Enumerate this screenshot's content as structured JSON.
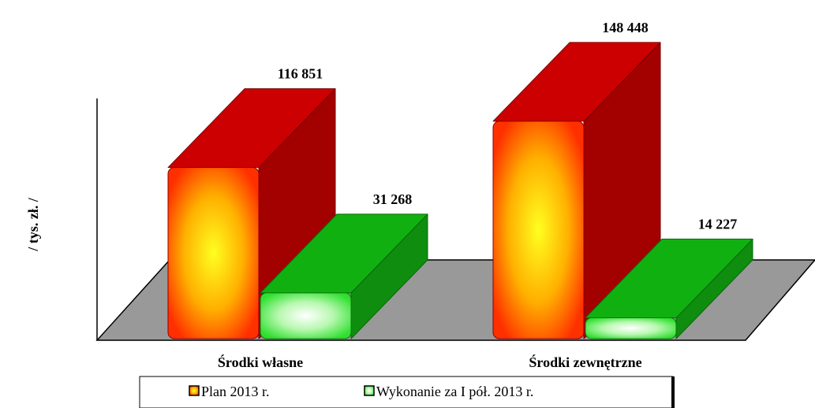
{
  "chart_data": {
    "type": "bar3d",
    "y_label": "/ tys. zł. /",
    "categories": [
      "Środki własne",
      "Środki zewnętrzne"
    ],
    "series": [
      {
        "name": "Plan 2013 r.",
        "color": "#cc0000",
        "values": [
          116851,
          148448
        ],
        "value_labels": [
          "116 851",
          "148 448"
        ]
      },
      {
        "name": "Wykonanie za I pół. 2013 r.",
        "color": "#11b011",
        "values": [
          31268,
          14227
        ],
        "value_labels": [
          "31 268",
          "14 227"
        ]
      }
    ],
    "ylim": [
      0,
      164000
    ]
  }
}
